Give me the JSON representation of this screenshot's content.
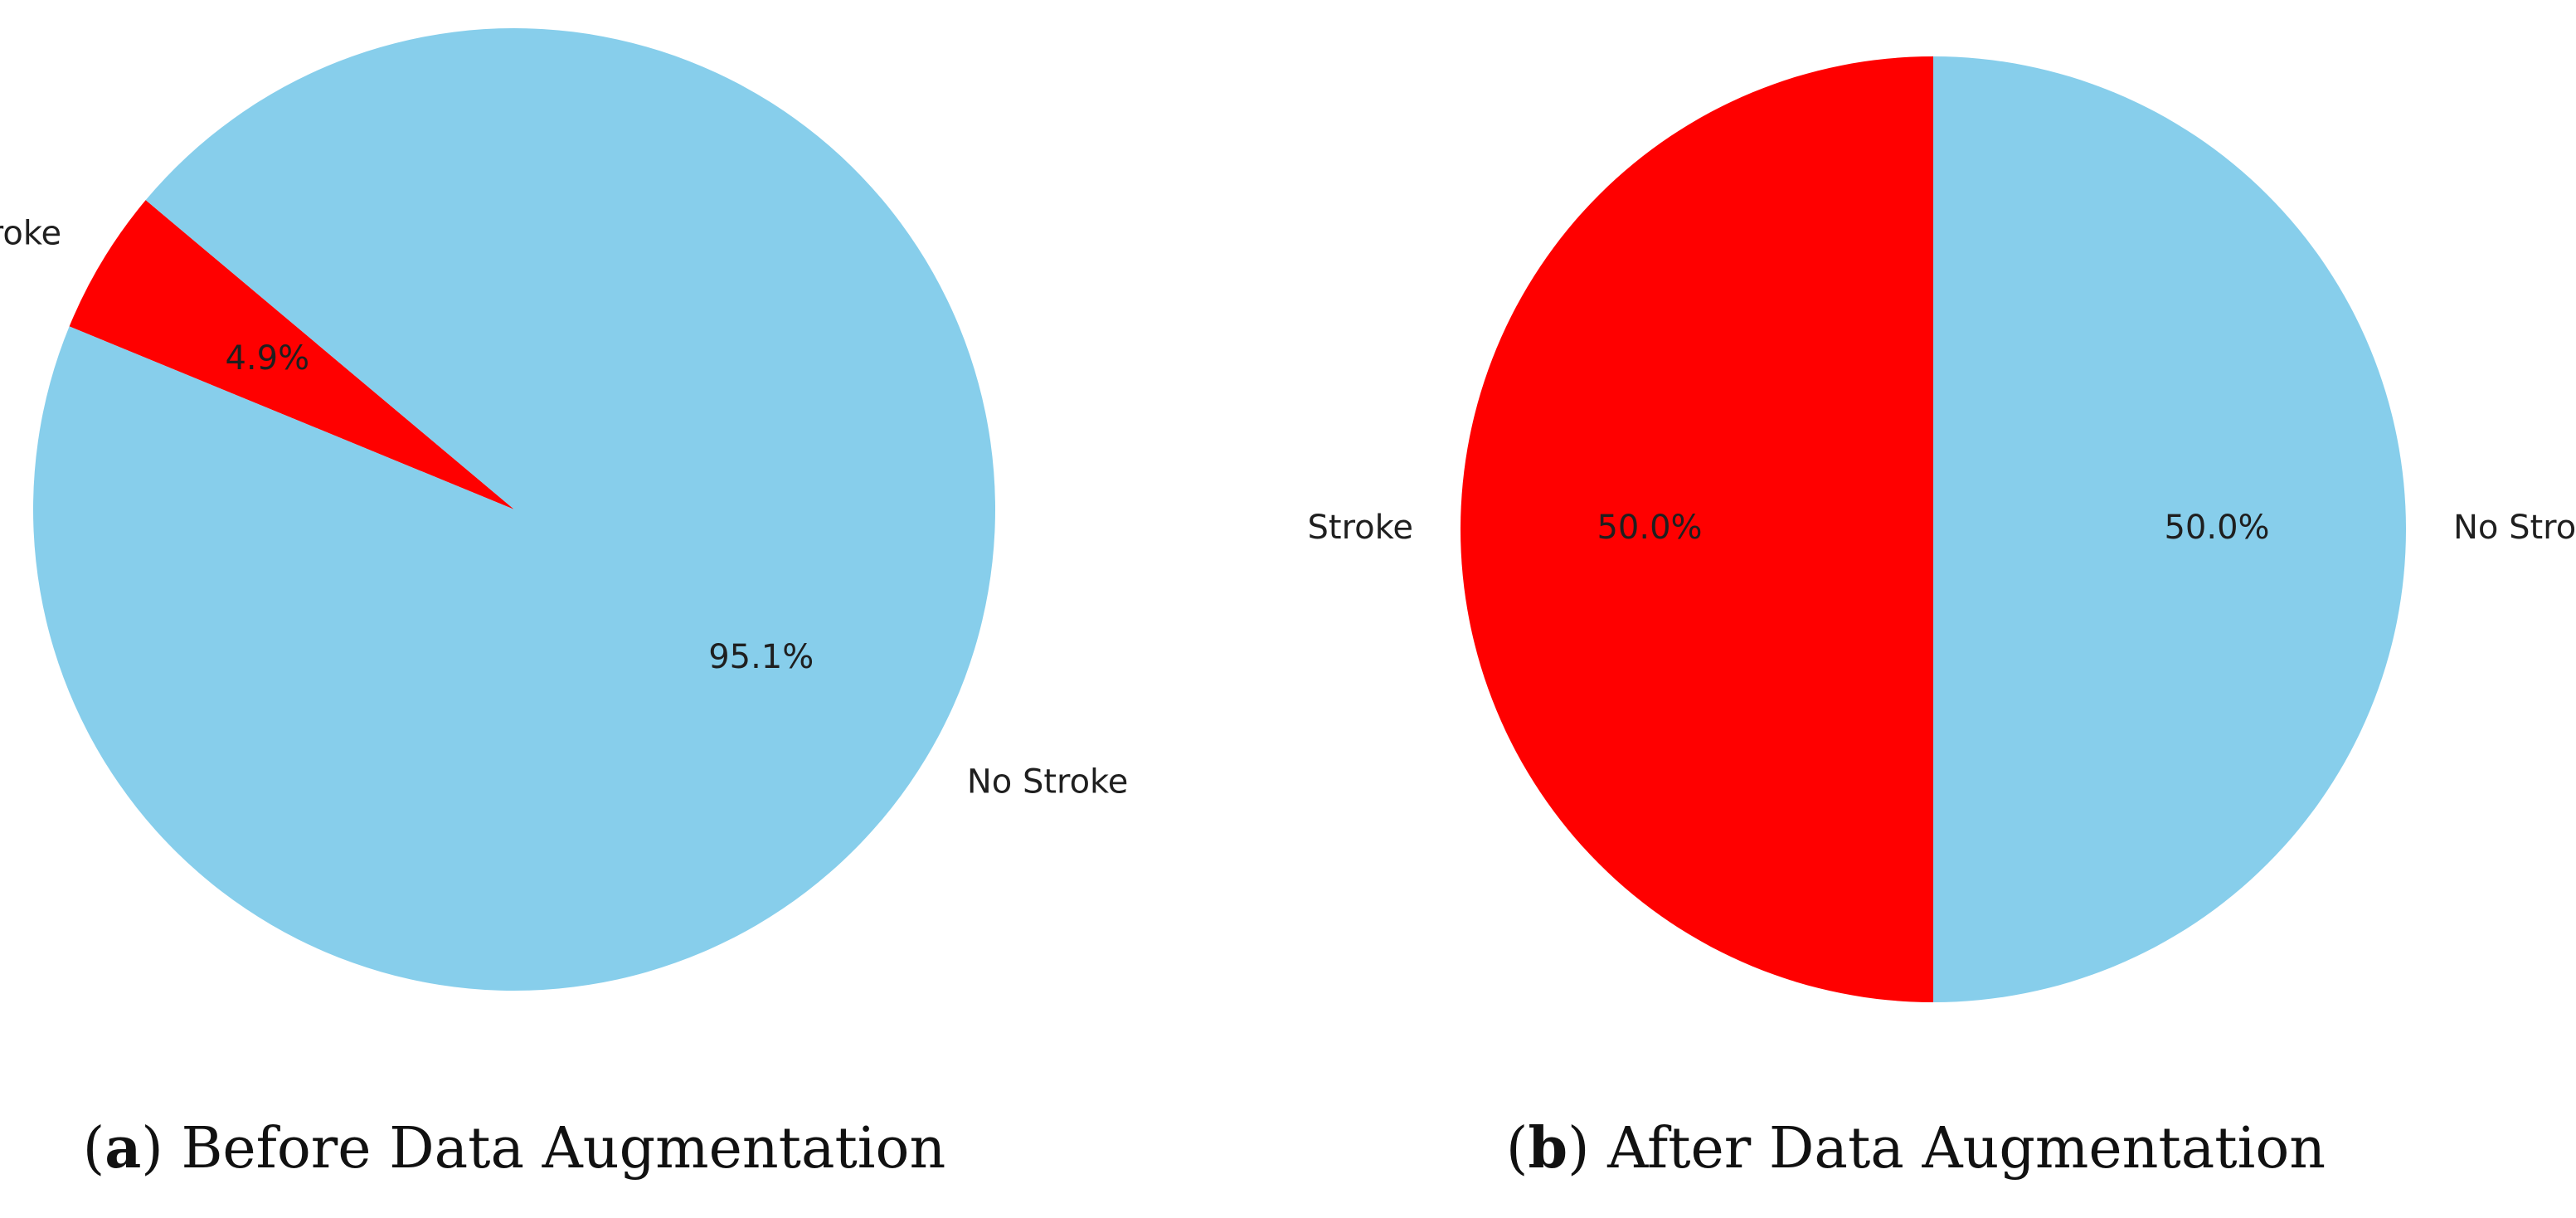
{
  "chart_data": [
    {
      "type": "pie",
      "caption_letter": "a",
      "caption_text": "Before Data Augmentation",
      "slices": [
        {
          "label": "Stroke",
          "value": 4.9,
          "pct_label": "4.9%",
          "color": "#ff0000"
        },
        {
          "label": "No Stroke",
          "value": 95.1,
          "pct_label": "95.1%",
          "color": "#87ceeb"
        }
      ]
    },
    {
      "type": "pie",
      "caption_letter": "b",
      "caption_text": "After Data Augmentation",
      "slices": [
        {
          "label": "Stroke",
          "value": 50.0,
          "pct_label": "50.0%",
          "color": "#ff0000"
        },
        {
          "label": "No Stroke",
          "value": 50.0,
          "pct_label": "50.0%",
          "color": "#87ceeb"
        }
      ]
    }
  ]
}
